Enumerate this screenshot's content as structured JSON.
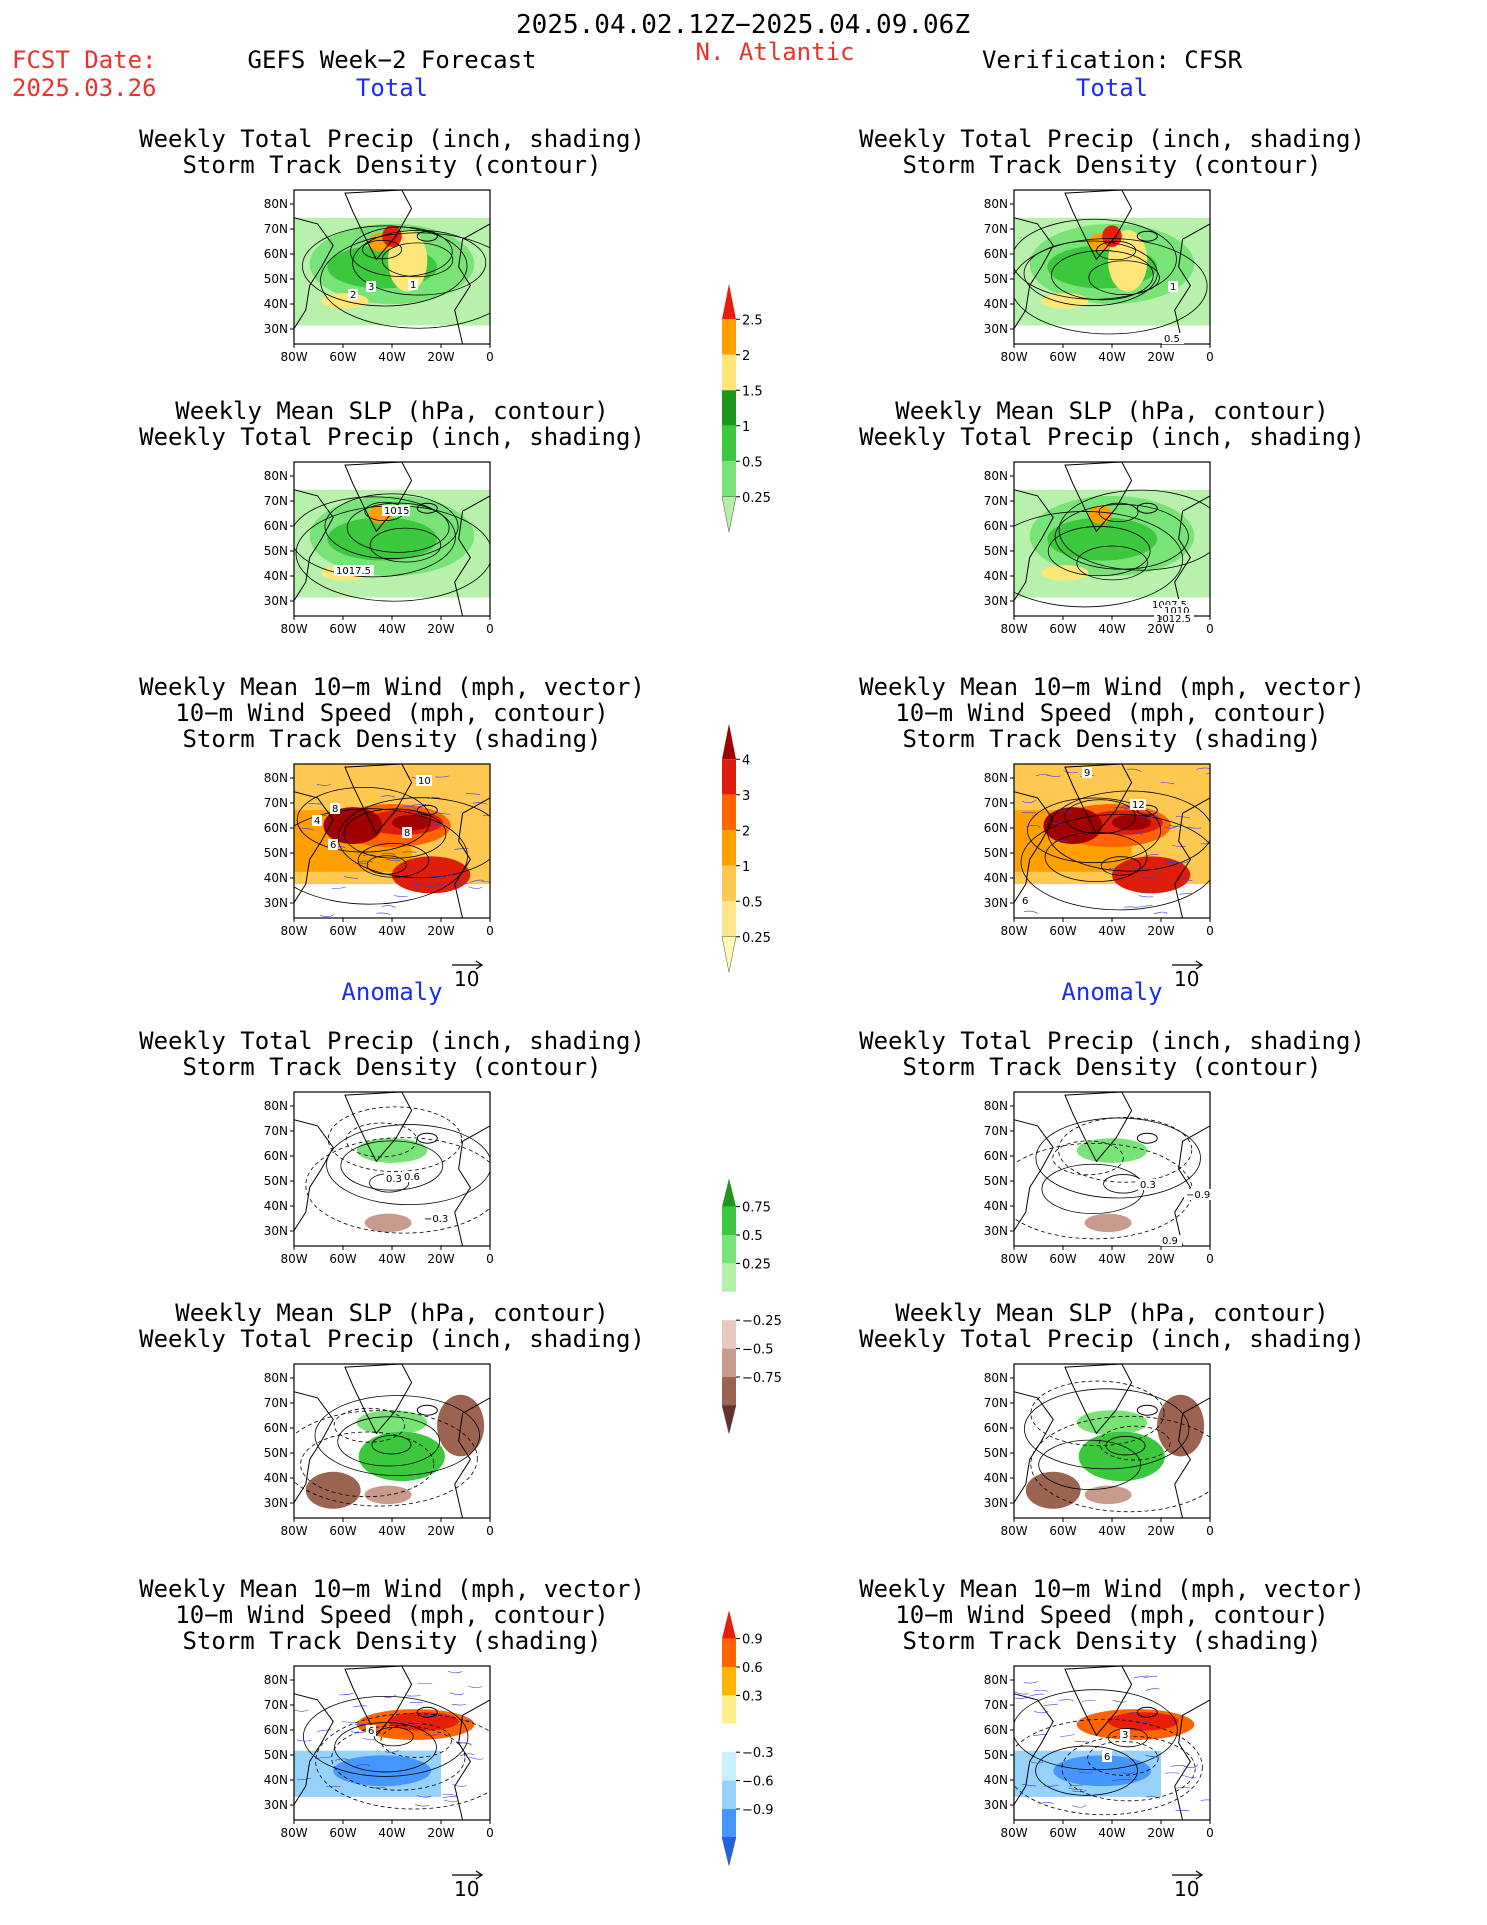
{
  "header": {
    "period": "2025.04.02.12Z−2025.04.09.06Z",
    "fcst_label": "FCST Date:",
    "fcst_date": "2025.03.26",
    "forecast_title": "GEFS Week−2 Forecast",
    "region": "N. Atlantic",
    "verification": "Verification: CFSR",
    "total_label": "Total",
    "anomaly_label": "Anomaly"
  },
  "axes": {
    "lat_labels": [
      "80N",
      "70N",
      "60N",
      "50N",
      "40N",
      "30N"
    ],
    "lon_labels": [
      "80W",
      "60W",
      "40W",
      "20W",
      "0"
    ]
  },
  "wind_reference": "10",
  "panels": [
    {
      "col": "left",
      "row": 1,
      "title": [
        "Weekly Total Precip (inch, shading)",
        "Storm Track Density (contour)"
      ],
      "kind": "precip",
      "labels": [
        "1",
        "2",
        "3"
      ]
    },
    {
      "col": "left",
      "row": 2,
      "title": [
        "Weekly Mean SLP (hPa, contour)",
        "Weekly Total Precip (inch, shading)"
      ],
      "kind": "precip",
      "labels": [
        "1015",
        "1017.5"
      ]
    },
    {
      "col": "left",
      "row": 3,
      "title": [
        "Weekly Mean 10−m Wind (mph, vector)",
        "10−m Wind Speed (mph, contour)",
        "Storm Track Density (shading)"
      ],
      "kind": "storm",
      "labels": [
        "10",
        "8",
        "4",
        "6",
        "8"
      ]
    },
    {
      "col": "left",
      "row": 4,
      "title": [
        "Weekly Total Precip (inch, shading)",
        "Storm Track Density (contour)"
      ],
      "kind": "precip_anom",
      "labels": [
        "0.3",
        "0.6",
        "−0.3"
      ]
    },
    {
      "col": "left",
      "row": 5,
      "title": [
        "Weekly Mean SLP (hPa, contour)",
        "Weekly Total Precip (inch, shading)"
      ],
      "kind": "precip_anom",
      "labels": []
    },
    {
      "col": "left",
      "row": 6,
      "title": [
        "Weekly Mean 10−m Wind (mph, vector)",
        "10−m Wind Speed (mph, contour)",
        "Storm Track Density (shading)"
      ],
      "kind": "storm_anom",
      "labels": [
        "6"
      ]
    },
    {
      "col": "right",
      "row": 1,
      "title": [
        "Weekly Total Precip (inch, shading)",
        "Storm Track Density (contour)"
      ],
      "kind": "precip",
      "labels": [
        "1",
        "0.5"
      ]
    },
    {
      "col": "right",
      "row": 2,
      "title": [
        "Weekly Mean SLP (hPa, contour)",
        "Weekly Total Precip (inch, shading)"
      ],
      "kind": "precip",
      "labels": [
        "1007.5",
        "1010",
        "1012.5"
      ]
    },
    {
      "col": "right",
      "row": 3,
      "title": [
        "Weekly Mean 10−m Wind (mph, vector)",
        "10−m Wind Speed (mph, contour)",
        "Storm Track Density (shading)"
      ],
      "kind": "storm",
      "labels": [
        "9",
        "12",
        "6"
      ]
    },
    {
      "col": "right",
      "row": 4,
      "title": [
        "Weekly Total Precip (inch, shading)",
        "Storm Track Density (contour)"
      ],
      "kind": "precip_anom",
      "labels": [
        "0.3",
        "−0.9",
        "0.9"
      ]
    },
    {
      "col": "right",
      "row": 5,
      "title": [
        "Weekly Mean SLP (hPa, contour)",
        "Weekly Total Precip (inch, shading)"
      ],
      "kind": "precip_anom",
      "labels": []
    },
    {
      "col": "right",
      "row": 6,
      "title": [
        "Weekly Mean 10−m Wind (mph, vector)",
        "10−m Wind Speed (mph, contour)",
        "Storm Track Density (shading)"
      ],
      "kind": "storm_anom",
      "labels": [
        "3",
        "6"
      ]
    }
  ],
  "colorbars": [
    {
      "name": "precip-total",
      "colors": [
        "#b4f0a8",
        "#78e478",
        "#3cc83c",
        "#1e961e",
        "#ffe678",
        "#ffa000",
        "#e61e0a"
      ],
      "ticks": [
        "0.25",
        "0.5",
        "1",
        "1.5",
        "2",
        "2.5"
      ]
    },
    {
      "name": "storm-total",
      "colors": [
        "#fffab4",
        "#ffe68c",
        "#ffc850",
        "#ffa000",
        "#ff6400",
        "#dc1e0a",
        "#a00000"
      ],
      "ticks": [
        "0.25",
        "0.5",
        "1",
        "2",
        "3",
        "4"
      ]
    },
    {
      "name": "precip-anomaly",
      "colors": [
        "#643228",
        "#9b6450",
        "#c89b8c",
        "#e6c8be",
        "#ffffff",
        "#b4f0a8",
        "#78e478",
        "#3cc83c",
        "#1e961e"
      ],
      "ticks": [
        "−0.75",
        "−0.5",
        "−0.25",
        "0.25",
        "0.5",
        "0.75"
      ]
    },
    {
      "name": "storm-anomaly",
      "colors": [
        "#1e64dc",
        "#4696ff",
        "#96d2fa",
        "#c8f0ff",
        "#ffffff",
        "#fff08c",
        "#ffb400",
        "#ff6400",
        "#e61e0a"
      ],
      "ticks": [
        "−0.9",
        "−0.6",
        "−0.3",
        "0.3",
        "0.6",
        "0.9"
      ]
    }
  ],
  "chart_data": {
    "type": "heatmap",
    "x_axis_ticks": [
      "80W",
      "60W",
      "40W",
      "20W",
      "0"
    ],
    "y_axis_ticks": [
      "80N",
      "70N",
      "60N",
      "50N",
      "40N",
      "30N"
    ],
    "xlim": [
      -80,
      0
    ],
    "ylim": [
      25,
      85
    ],
    "legend_position": "center",
    "panel_count": 12
  }
}
